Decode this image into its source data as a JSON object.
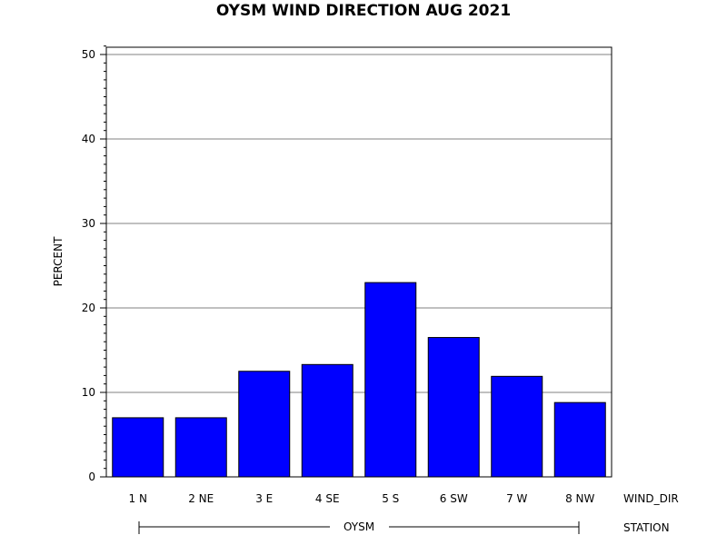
{
  "chart_data": {
    "type": "bar",
    "title": "OYSM WIND DIRECTION AUG 2021",
    "ylabel": "PERCENT",
    "xlabel": "WIND_DIR",
    "group_axis_label": "STATION",
    "group_label": "OYSM",
    "categories": [
      "1 N",
      "2 NE",
      "3 E",
      "4 SE",
      "5 S",
      "6 SW",
      "7 W",
      "8 NW"
    ],
    "values": [
      7.0,
      7.0,
      12.5,
      13.3,
      23.0,
      16.5,
      11.9,
      8.8
    ],
    "ylim": [
      0,
      51
    ],
    "yticks": [
      "0",
      "10",
      "20",
      "30",
      "40",
      "50"
    ],
    "grid": true,
    "bar_color": "#0000ff"
  }
}
